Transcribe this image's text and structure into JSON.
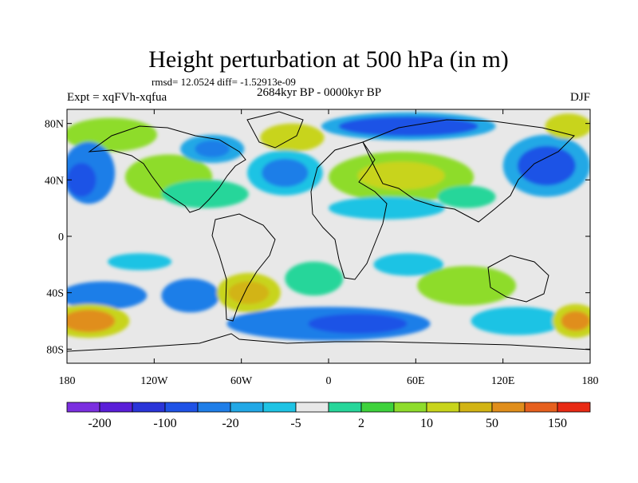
{
  "title": "Height perturbation at 500 hPa (in m)",
  "stats": "rmsd= 12.0524 diff= -1.52913e-09",
  "period": "2684kyr BP - 0000kyr BP",
  "experiment": "Expt = xqFVh-xqfua",
  "season": "DJF",
  "lat_ticks": [
    {
      "label": "80N",
      "value": 80
    },
    {
      "label": "40N",
      "value": 40
    },
    {
      "label": "0",
      "value": 0
    },
    {
      "label": "40S",
      "value": -40
    },
    {
      "label": "80S",
      "value": -80
    }
  ],
  "lon_ticks": [
    {
      "label": "180",
      "value": -180
    },
    {
      "label": "120W",
      "value": -120
    },
    {
      "label": "60W",
      "value": -60
    },
    {
      "label": "0",
      "value": 0
    },
    {
      "label": "60E",
      "value": 60
    },
    {
      "label": "120E",
      "value": 120
    },
    {
      "label": "180",
      "value": 180
    }
  ],
  "colorbar": {
    "colors": [
      "#7b2fe0",
      "#5a1ed8",
      "#2a34d8",
      "#1f52e6",
      "#1f7ee8",
      "#22a8e6",
      "#1fc3e4",
      "#e8e8e8",
      "#27d69a",
      "#3ed23c",
      "#8edc2c",
      "#c8d41c",
      "#d2b414",
      "#e08e1c",
      "#e6601e",
      "#e82a14"
    ],
    "labels": [
      {
        "text": "-200",
        "boundary": 1
      },
      {
        "text": "-100",
        "boundary": 3
      },
      {
        "text": "-20",
        "boundary": 5
      },
      {
        "text": "-5",
        "boundary": 7
      },
      {
        "text": "2",
        "boundary": 9
      },
      {
        "text": "10",
        "boundary": 11
      },
      {
        "text": "50",
        "boundary": 13
      },
      {
        "text": "150",
        "boundary": 15
      }
    ]
  },
  "palette": {
    "neutral": "#e8e8e8",
    "cyan": "#1fc3e4",
    "lightblue": "#22a8e6",
    "blue": "#1f7ee8",
    "deepblue": "#1f52e6",
    "teal": "#27d69a",
    "green": "#3ed23c",
    "yellowgreen": "#8edc2c",
    "olive": "#c8d41c",
    "orange": "#e08e1c",
    "gold": "#d2b414"
  },
  "map_data": {
    "type": "filled-contour",
    "projection": "cylindrical-equidistant",
    "lon_range": [
      -180,
      180
    ],
    "lat_range": [
      -90,
      90
    ],
    "blobs": [
      {
        "lon": -150,
        "lat": 72,
        "rlon": 32,
        "rlat": 12,
        "color": "yellowgreen"
      },
      {
        "lon": -165,
        "lat": 45,
        "rlon": 18,
        "rlat": 22,
        "color": "blue"
      },
      {
        "lon": -170,
        "lat": 40,
        "rlon": 10,
        "rlat": 12,
        "color": "deepblue"
      },
      {
        "lon": -110,
        "lat": 42,
        "rlon": 30,
        "rlat": 16,
        "color": "yellowgreen"
      },
      {
        "lon": -85,
        "lat": 30,
        "rlon": 30,
        "rlat": 10,
        "color": "teal"
      },
      {
        "lon": -80,
        "lat": 62,
        "rlon": 22,
        "rlat": 10,
        "color": "lightblue"
      },
      {
        "lon": -80,
        "lat": 62,
        "rlon": 12,
        "rlat": 6,
        "color": "blue"
      },
      {
        "lon": -25,
        "lat": 70,
        "rlon": 22,
        "rlat": 10,
        "color": "olive"
      },
      {
        "lon": -30,
        "lat": 45,
        "rlon": 26,
        "rlat": 16,
        "color": "cyan"
      },
      {
        "lon": -30,
        "lat": 45,
        "rlon": 16,
        "rlat": 10,
        "color": "blue"
      },
      {
        "lon": 55,
        "lat": 78,
        "rlon": 60,
        "rlat": 10,
        "color": "lightblue"
      },
      {
        "lon": 55,
        "lat": 78,
        "rlon": 48,
        "rlat": 7,
        "color": "deepblue"
      },
      {
        "lon": 50,
        "lat": 42,
        "rlon": 50,
        "rlat": 18,
        "color": "yellowgreen"
      },
      {
        "lon": 50,
        "lat": 43,
        "rlon": 30,
        "rlat": 10,
        "color": "olive"
      },
      {
        "lon": 40,
        "lat": 20,
        "rlon": 40,
        "rlat": 8,
        "color": "cyan"
      },
      {
        "lon": 150,
        "lat": 50,
        "rlon": 30,
        "rlat": 22,
        "color": "lightblue"
      },
      {
        "lon": 150,
        "lat": 50,
        "rlon": 20,
        "rlat": 14,
        "color": "deepblue"
      },
      {
        "lon": 165,
        "lat": 78,
        "rlon": 16,
        "rlat": 9,
        "color": "olive"
      },
      {
        "lon": 95,
        "lat": 28,
        "rlon": 20,
        "rlat": 8,
        "color": "teal"
      },
      {
        "lon": -130,
        "lat": -18,
        "rlon": 22,
        "rlat": 6,
        "color": "cyan"
      },
      {
        "lon": -155,
        "lat": -42,
        "rlon": 30,
        "rlat": 10,
        "color": "blue"
      },
      {
        "lon": -95,
        "lat": -42,
        "rlon": 20,
        "rlat": 12,
        "color": "blue"
      },
      {
        "lon": -55,
        "lat": -40,
        "rlon": 22,
        "rlat": 14,
        "color": "olive"
      },
      {
        "lon": -55,
        "lat": -40,
        "rlon": 14,
        "rlat": 8,
        "color": "gold"
      },
      {
        "lon": -10,
        "lat": -30,
        "rlon": 20,
        "rlat": 12,
        "color": "teal"
      },
      {
        "lon": 0,
        "lat": -62,
        "rlon": 70,
        "rlat": 12,
        "color": "blue"
      },
      {
        "lon": 20,
        "lat": -62,
        "rlon": 34,
        "rlat": 7,
        "color": "deepblue"
      },
      {
        "lon": 55,
        "lat": -20,
        "rlon": 24,
        "rlat": 8,
        "color": "cyan"
      },
      {
        "lon": 95,
        "lat": -35,
        "rlon": 34,
        "rlat": 14,
        "color": "yellowgreen"
      },
      {
        "lon": 130,
        "lat": -60,
        "rlon": 32,
        "rlat": 10,
        "color": "cyan"
      },
      {
        "lon": -165,
        "lat": -60,
        "rlon": 28,
        "rlat": 12,
        "color": "olive"
      },
      {
        "lon": -165,
        "lat": -60,
        "rlon": 18,
        "rlat": 8,
        "color": "orange"
      },
      {
        "lon": 170,
        "lat": -60,
        "rlon": 16,
        "rlat": 12,
        "color": "olive"
      },
      {
        "lon": 170,
        "lat": -60,
        "rlon": 10,
        "rlat": 7,
        "color": "orange"
      }
    ]
  }
}
